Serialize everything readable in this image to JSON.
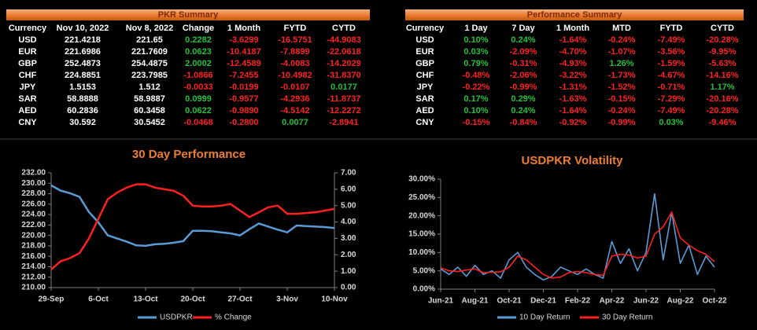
{
  "pkr_summary": {
    "title": "PKR Summary",
    "headers": [
      "Currency",
      "Nov 10, 2022",
      "Nov 8, 2022",
      "Change",
      "1 Month",
      "FYTD",
      "CYTD"
    ],
    "rows": [
      [
        "USD",
        "221.4218",
        "221.65",
        "0.2282",
        "-3.6299",
        "-16.5751",
        "-44.9083"
      ],
      [
        "EUR",
        "221.6986",
        "221.7609",
        "0.0623",
        "-10.4187",
        "-7.8899",
        "-22.0618"
      ],
      [
        "GBP",
        "252.4873",
        "254.4875",
        "2.0002",
        "-12.4589",
        "-4.0083",
        "-14.2029"
      ],
      [
        "CHF",
        "224.8851",
        "223.7985",
        "-1.0866",
        "-7.2455",
        "-10.4982",
        "-31.8370"
      ],
      [
        "JPY",
        "1.5153",
        "1.512",
        "-0.0033",
        "-0.0199",
        "-0.0107",
        "0.0177"
      ],
      [
        "SAR",
        "58.8888",
        "58.9887",
        "0.0999",
        "-0.9577",
        "-4.2936",
        "-11.8737"
      ],
      [
        "AED",
        "60.2836",
        "60.3458",
        "0.0622",
        "-0.9890",
        "-4.5142",
        "-12.2272"
      ],
      [
        "CNY",
        "30.592",
        "30.5452",
        "-0.0468",
        "-0.2800",
        "0.0077",
        "-2.8941"
      ]
    ]
  },
  "performance_summary": {
    "title": "Performance Summary",
    "headers": [
      "Currency",
      "1 Day",
      "7 Day",
      "1 Month",
      "MTD",
      "FYTD",
      "CYTD"
    ],
    "rows": [
      [
        "USD",
        "0.10%",
        "0.24%",
        "-1.64%",
        "-0.24%",
        "-7.49%",
        "-20.28%"
      ],
      [
        "EUR",
        "0.03%",
        "-2.09%",
        "-4.70%",
        "-1.07%",
        "-3.56%",
        "-9.95%"
      ],
      [
        "GBP",
        "0.79%",
        "-0.31%",
        "-4.93%",
        "1.26%",
        "-1.59%",
        "-5.63%"
      ],
      [
        "CHF",
        "-0.48%",
        "-2.06%",
        "-3.22%",
        "-1.73%",
        "-4.67%",
        "-14.16%"
      ],
      [
        "JPY",
        "-0.22%",
        "-0.99%",
        "-1.31%",
        "-1.52%",
        "-0.71%",
        "1.17%"
      ],
      [
        "SAR",
        "0.17%",
        "0.29%",
        "-1.63%",
        "-0.15%",
        "-7.29%",
        "-20.16%"
      ],
      [
        "AED",
        "0.10%",
        "0.24%",
        "-1.64%",
        "-0.24%",
        "-7.49%",
        "-20.28%"
      ],
      [
        "CNY",
        "-0.15%",
        "-0.84%",
        "-0.92%",
        "-0.99%",
        "0.03%",
        "-9.46%"
      ]
    ]
  },
  "chart_data": [
    {
      "type": "line",
      "title": "30 Day Performance",
      "categories": [
        "29-Sep",
        null,
        null,
        null,
        null,
        "6-Oct",
        null,
        null,
        null,
        null,
        "13-Oct",
        null,
        null,
        null,
        null,
        "20-Oct",
        null,
        null,
        null,
        null,
        "27-Oct",
        null,
        null,
        null,
        null,
        "3-Nov",
        null,
        null,
        null,
        null,
        "10-Nov"
      ],
      "series": [
        {
          "name": "USDPKR",
          "color": "#5b9bd5",
          "values": [
            229.6,
            228.6,
            228.1,
            227.4,
            224.5,
            222.5,
            220.0,
            219.4,
            218.8,
            218.1,
            218.0,
            218.3,
            218.4,
            218.6,
            218.9,
            220.9,
            220.9,
            220.8,
            220.6,
            220.4,
            220.0,
            221.2,
            222.3,
            221.7,
            221.1,
            220.6,
            221.9,
            221.8,
            221.7,
            221.6,
            221.4
          ]
        },
        {
          "name": "% Change",
          "color": "#ff2020",
          "axis": "y2",
          "values": [
            1.1,
            1.6,
            1.8,
            2.1,
            3.0,
            4.2,
            5.4,
            5.8,
            6.1,
            6.3,
            6.3,
            6.1,
            6.0,
            5.9,
            5.6,
            5.0,
            4.95,
            4.95,
            5.0,
            5.1,
            4.7,
            4.3,
            4.6,
            4.9,
            5.0,
            4.5,
            4.5,
            4.55,
            4.6,
            4.7,
            4.8
          ]
        }
      ],
      "ylim": [
        210,
        232
      ],
      "yticks": [
        {
          "value": 210,
          "label": "210.00"
        },
        {
          "value": 212,
          "label": "212.00"
        },
        {
          "value": 214,
          "label": "214.00"
        },
        {
          "value": 216,
          "label": "216.00"
        },
        {
          "value": 218,
          "label": "218.00"
        },
        {
          "value": 220,
          "label": "220.00"
        },
        {
          "value": 222,
          "label": "222.00"
        },
        {
          "value": 224,
          "label": "224.00"
        },
        {
          "value": 226,
          "label": "226.00"
        },
        {
          "value": 228,
          "label": "228.00"
        },
        {
          "value": 230,
          "label": "230.00"
        },
        {
          "value": 232,
          "label": "232.00"
        }
      ],
      "y2lim": [
        0,
        7
      ],
      "y2ticks": [
        {
          "value": 0,
          "label": "0.00"
        },
        {
          "value": 1,
          "label": "1.00"
        },
        {
          "value": 2,
          "label": "2.00"
        },
        {
          "value": 3,
          "label": "3.00"
        },
        {
          "value": 4,
          "label": "4.00"
        },
        {
          "value": 5,
          "label": "5.00"
        },
        {
          "value": 6,
          "label": "6.00"
        },
        {
          "value": 7,
          "label": "7.00"
        }
      ]
    },
    {
      "type": "line",
      "title": "USDPKR Volatility",
      "categories": [
        "Jun-21",
        null,
        null,
        null,
        "Aug-21",
        null,
        null,
        null,
        "Oct-21",
        null,
        null,
        null,
        "Dec-21",
        null,
        null,
        null,
        "Feb-22",
        null,
        null,
        null,
        "Apr-22",
        null,
        null,
        null,
        "Jun-22",
        null,
        null,
        null,
        "Aug-22",
        null,
        null,
        null,
        "Oct-22"
      ],
      "series": [
        {
          "name": "10 Day Return",
          "color": "#5b9bd5",
          "values": [
            5.5,
            4,
            6,
            3.5,
            6.5,
            4,
            5,
            3,
            8,
            10,
            6,
            4,
            2.5,
            3.5,
            6,
            5,
            4,
            5.5,
            4,
            3,
            13,
            7,
            11,
            5,
            10,
            26,
            8,
            21,
            7,
            12,
            4,
            9,
            6
          ]
        },
        {
          "name": "30 Day Return",
          "color": "#ff2020",
          "values": [
            5.8,
            5,
            4.8,
            5.2,
            5.5,
            4.5,
            4.6,
            4.7,
            6,
            9,
            8,
            6,
            4,
            3,
            3.3,
            4.5,
            4.8,
            4.5,
            4,
            3.8,
            9,
            9.5,
            9.3,
            8.5,
            9,
            15,
            17,
            21,
            14,
            12,
            10.5,
            9.5,
            7.5
          ]
        }
      ],
      "ylim": [
        0,
        30
      ],
      "yticks": [
        {
          "value": 0,
          "label": "0.00%"
        },
        {
          "value": 5,
          "label": "5.00%"
        },
        {
          "value": 10,
          "label": "10.00%"
        },
        {
          "value": 15,
          "label": "15.00%"
        },
        {
          "value": 20,
          "label": "20.00%"
        },
        {
          "value": 25,
          "label": "25.00%"
        },
        {
          "value": 30,
          "label": "30.00%"
        }
      ]
    }
  ]
}
